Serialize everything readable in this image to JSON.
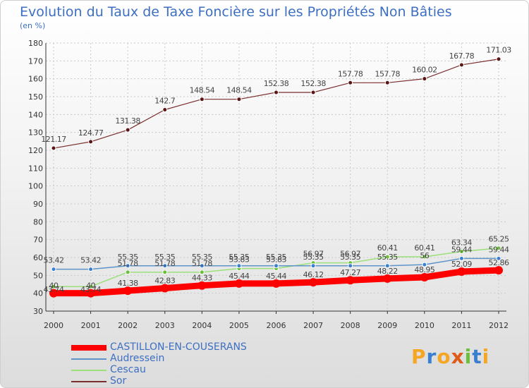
{
  "title": "Evolution du Taux de Taxe Foncière sur les Propriétés Non Bâties",
  "subtitle": "(en %)",
  "logo": {
    "text": "Proxiti",
    "letters": [
      "P",
      "r",
      "o",
      "x",
      "i",
      "t",
      "i"
    ],
    "colors": [
      "#f5a623",
      "#3a7fd0",
      "#f5a623",
      "#e05a1a",
      "#6cbf3a",
      "#3a7fd0",
      "#f5a623"
    ]
  },
  "chart_data": {
    "type": "line",
    "title": "Evolution du Taux de Taxe Foncière sur les Propriétés Non Bâties",
    "ylabel": "(en %)",
    "xlabel": "",
    "ylim": [
      30,
      180
    ],
    "yticks": [
      30,
      40,
      50,
      60,
      70,
      80,
      90,
      100,
      110,
      120,
      130,
      140,
      150,
      160,
      170,
      180
    ],
    "categories": [
      "2000",
      "2001",
      "2002",
      "2003",
      "2004",
      "2005",
      "2006",
      "2007",
      "2008",
      "2009",
      "2010",
      "2011",
      "2012"
    ],
    "series": [
      {
        "name": "CASTILLON-EN-COUSERANS",
        "color": "#ff0000",
        "values": [
          40.0,
          40.0,
          41.38,
          42.83,
          44.33,
          45.44,
          45.44,
          46.12,
          47.27,
          48.22,
          48.95,
          52.09,
          52.86
        ],
        "labels": [
          "40",
          "40",
          "41.38",
          "42.83",
          "44.33",
          "45.44",
          "45.44",
          "46.12",
          "47.27",
          "48.22",
          "48.95",
          "52.09",
          "52.86"
        ]
      },
      {
        "name": "Audressein",
        "color": "#5e94c8",
        "values": [
          53.42,
          53.42,
          55.35,
          55.35,
          55.35,
          55.35,
          55.35,
          55.35,
          55.35,
          55.35,
          56.0,
          59.44,
          59.44
        ],
        "labels": [
          "53.42",
          "53.42",
          "55.35",
          "55.35",
          "55.35",
          "55.35",
          "55.35",
          "55.35",
          "55.35",
          "55.35",
          "56",
          "59.44",
          "59.44"
        ]
      },
      {
        "name": "Cescau",
        "color": "#9be07a",
        "values": [
          43.74,
          43.74,
          51.78,
          51.78,
          51.78,
          53.83,
          53.83,
          56.97,
          56.97,
          60.41,
          60.41,
          63.34,
          65.25
        ],
        "labels": [
          "43.74",
          "43.74",
          "51.78",
          "51.78",
          "51.78",
          "53.83",
          "53.83",
          "56.97",
          "56.97",
          "60.41",
          "60.41",
          "63.34",
          "65.25"
        ]
      },
      {
        "name": "Sor",
        "color": "#7a2e2e",
        "values": [
          121.17,
          124.77,
          131.38,
          142.7,
          148.54,
          148.54,
          152.38,
          152.38,
          157.78,
          157.78,
          160.02,
          167.78,
          171.03
        ],
        "labels": [
          "121.17",
          "124.77",
          "131.38",
          "142.7",
          "148.54",
          "148.54",
          "152.38",
          "152.38",
          "157.78",
          "157.78",
          "160.02",
          "167.78",
          "171.03"
        ]
      }
    ]
  }
}
